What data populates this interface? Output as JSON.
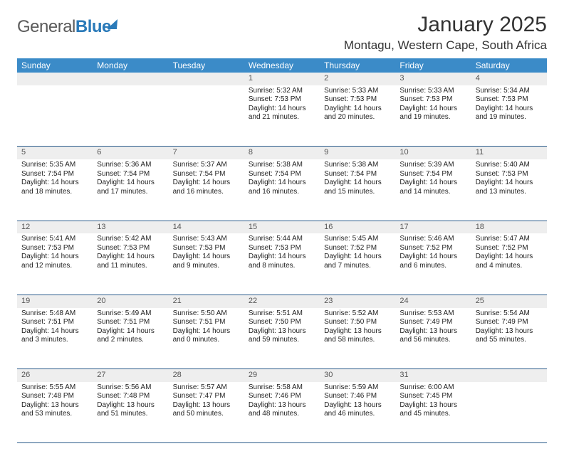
{
  "brand": {
    "name_gray": "General",
    "name_blue": "Blue"
  },
  "title": "January 2025",
  "location": "Montagu, Western Cape, South Africa",
  "colors": {
    "header_bg": "#3b8bc8",
    "header_text": "#ffffff",
    "daynum_bg": "#eeeeee",
    "row_border": "#2a5a8a",
    "body_text": "#222222"
  },
  "day_headers": [
    "Sunday",
    "Monday",
    "Tuesday",
    "Wednesday",
    "Thursday",
    "Friday",
    "Saturday"
  ],
  "weeks": [
    [
      null,
      null,
      null,
      {
        "d": "1",
        "sr": "5:32 AM",
        "ss": "7:53 PM",
        "dl": "14 hours and 21 minutes."
      },
      {
        "d": "2",
        "sr": "5:33 AM",
        "ss": "7:53 PM",
        "dl": "14 hours and 20 minutes."
      },
      {
        "d": "3",
        "sr": "5:33 AM",
        "ss": "7:53 PM",
        "dl": "14 hours and 19 minutes."
      },
      {
        "d": "4",
        "sr": "5:34 AM",
        "ss": "7:53 PM",
        "dl": "14 hours and 19 minutes."
      }
    ],
    [
      {
        "d": "5",
        "sr": "5:35 AM",
        "ss": "7:54 PM",
        "dl": "14 hours and 18 minutes."
      },
      {
        "d": "6",
        "sr": "5:36 AM",
        "ss": "7:54 PM",
        "dl": "14 hours and 17 minutes."
      },
      {
        "d": "7",
        "sr": "5:37 AM",
        "ss": "7:54 PM",
        "dl": "14 hours and 16 minutes."
      },
      {
        "d": "8",
        "sr": "5:38 AM",
        "ss": "7:54 PM",
        "dl": "14 hours and 16 minutes."
      },
      {
        "d": "9",
        "sr": "5:38 AM",
        "ss": "7:54 PM",
        "dl": "14 hours and 15 minutes."
      },
      {
        "d": "10",
        "sr": "5:39 AM",
        "ss": "7:54 PM",
        "dl": "14 hours and 14 minutes."
      },
      {
        "d": "11",
        "sr": "5:40 AM",
        "ss": "7:53 PM",
        "dl": "14 hours and 13 minutes."
      }
    ],
    [
      {
        "d": "12",
        "sr": "5:41 AM",
        "ss": "7:53 PM",
        "dl": "14 hours and 12 minutes."
      },
      {
        "d": "13",
        "sr": "5:42 AM",
        "ss": "7:53 PM",
        "dl": "14 hours and 11 minutes."
      },
      {
        "d": "14",
        "sr": "5:43 AM",
        "ss": "7:53 PM",
        "dl": "14 hours and 9 minutes."
      },
      {
        "d": "15",
        "sr": "5:44 AM",
        "ss": "7:53 PM",
        "dl": "14 hours and 8 minutes."
      },
      {
        "d": "16",
        "sr": "5:45 AM",
        "ss": "7:52 PM",
        "dl": "14 hours and 7 minutes."
      },
      {
        "d": "17",
        "sr": "5:46 AM",
        "ss": "7:52 PM",
        "dl": "14 hours and 6 minutes."
      },
      {
        "d": "18",
        "sr": "5:47 AM",
        "ss": "7:52 PM",
        "dl": "14 hours and 4 minutes."
      }
    ],
    [
      {
        "d": "19",
        "sr": "5:48 AM",
        "ss": "7:51 PM",
        "dl": "14 hours and 3 minutes."
      },
      {
        "d": "20",
        "sr": "5:49 AM",
        "ss": "7:51 PM",
        "dl": "14 hours and 2 minutes."
      },
      {
        "d": "21",
        "sr": "5:50 AM",
        "ss": "7:51 PM",
        "dl": "14 hours and 0 minutes."
      },
      {
        "d": "22",
        "sr": "5:51 AM",
        "ss": "7:50 PM",
        "dl": "13 hours and 59 minutes."
      },
      {
        "d": "23",
        "sr": "5:52 AM",
        "ss": "7:50 PM",
        "dl": "13 hours and 58 minutes."
      },
      {
        "d": "24",
        "sr": "5:53 AM",
        "ss": "7:49 PM",
        "dl": "13 hours and 56 minutes."
      },
      {
        "d": "25",
        "sr": "5:54 AM",
        "ss": "7:49 PM",
        "dl": "13 hours and 55 minutes."
      }
    ],
    [
      {
        "d": "26",
        "sr": "5:55 AM",
        "ss": "7:48 PM",
        "dl": "13 hours and 53 minutes."
      },
      {
        "d": "27",
        "sr": "5:56 AM",
        "ss": "7:48 PM",
        "dl": "13 hours and 51 minutes."
      },
      {
        "d": "28",
        "sr": "5:57 AM",
        "ss": "7:47 PM",
        "dl": "13 hours and 50 minutes."
      },
      {
        "d": "29",
        "sr": "5:58 AM",
        "ss": "7:46 PM",
        "dl": "13 hours and 48 minutes."
      },
      {
        "d": "30",
        "sr": "5:59 AM",
        "ss": "7:46 PM",
        "dl": "13 hours and 46 minutes."
      },
      {
        "d": "31",
        "sr": "6:00 AM",
        "ss": "7:45 PM",
        "dl": "13 hours and 45 minutes."
      },
      null
    ]
  ],
  "labels": {
    "sunrise": "Sunrise: ",
    "sunset": "Sunset: ",
    "daylight": "Daylight: "
  }
}
